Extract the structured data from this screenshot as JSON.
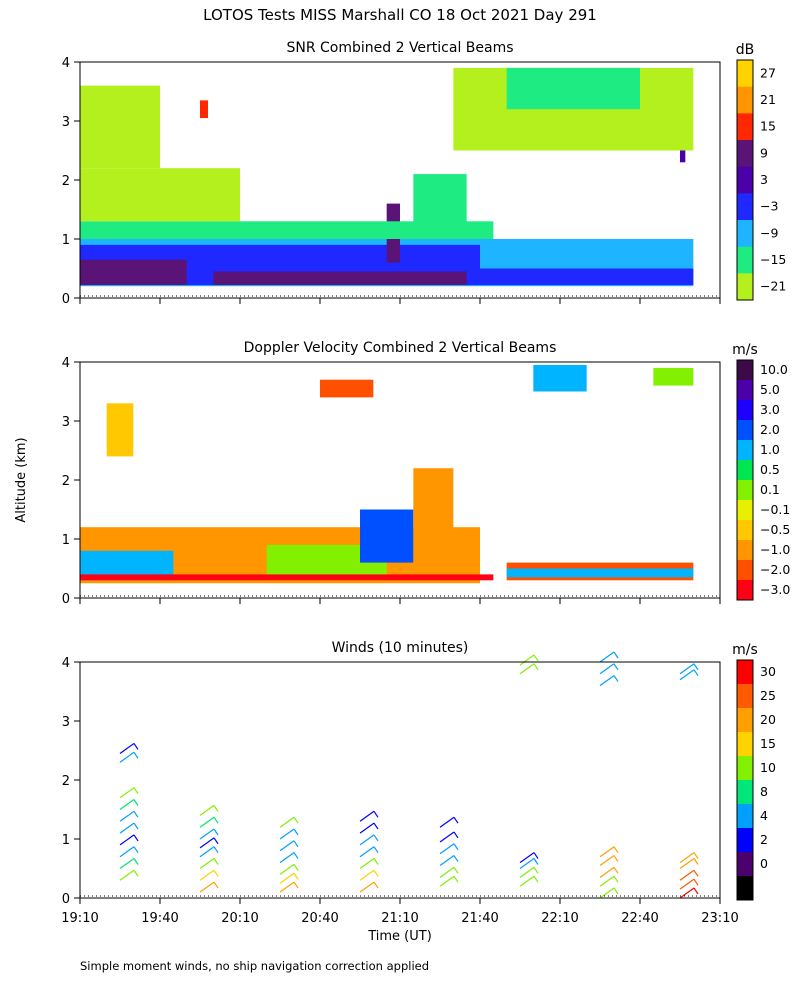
{
  "title": "LOTOS Tests MISS Marshall CO  18 Oct 2021 Day 291",
  "y_axis_label": "Altitude (km)",
  "x_axis_label": "Time (UT)",
  "x_ticks": [
    "19:10",
    "19:40",
    "20:10",
    "20:40",
    "21:10",
    "21:40",
    "22:10",
    "22:40",
    "23:10"
  ],
  "y_ticks": [
    "0",
    "1",
    "2",
    "3",
    "4"
  ],
  "footnote": "Simple moment winds, no ship navigation correction applied",
  "chart_data": [
    {
      "type": "heatmap",
      "title": "SNR Combined 2 Vertical Beams",
      "ylim": [
        0,
        4
      ],
      "xlabel": "",
      "ylabel": "Altitude (km)",
      "colorbar": {
        "unit": "dB",
        "labels": [
          "27",
          "21",
          "15",
          "9",
          "3",
          "−3",
          "−9",
          "−15",
          "−21"
        ],
        "colors": [
          "#ffd200",
          "#ff9600",
          "#ff2800",
          "#5a1478",
          "#4b00aa",
          "#1e28ff",
          "#1eb4ff",
          "#1eeb82",
          "#b4f01e"
        ]
      },
      "blocks": [
        {
          "t0": "19:10",
          "t1": "23:00",
          "h0": 0.2,
          "h1": 1.0,
          "c": 6
        },
        {
          "t0": "19:10",
          "t1": "21:40",
          "h0": 0.22,
          "h1": 0.9,
          "c": 5
        },
        {
          "t0": "19:10",
          "t1": "19:50",
          "h0": 0.22,
          "h1": 0.65,
          "c": 3
        },
        {
          "t0": "20:00",
          "t1": "21:35",
          "h0": 0.22,
          "h1": 0.45,
          "c": 3
        },
        {
          "t0": "21:05",
          "t1": "21:10",
          "h0": 0.6,
          "h1": 1.6,
          "c": 3
        },
        {
          "t0": "21:40",
          "t1": "23:00",
          "h0": 0.22,
          "h1": 0.5,
          "c": 5
        },
        {
          "t0": "19:10",
          "t1": "21:45",
          "h0": 1.0,
          "h1": 1.3,
          "c": 7
        },
        {
          "t0": "21:15",
          "t1": "21:35",
          "h0": 1.0,
          "h1": 2.1,
          "c": 7
        },
        {
          "t0": "19:10",
          "t1": "20:10",
          "h0": 1.3,
          "h1": 2.2,
          "c": 8
        },
        {
          "t0": "19:10",
          "t1": "19:40",
          "h0": 2.2,
          "h1": 3.6,
          "c": 8
        },
        {
          "t0": "21:30",
          "t1": "23:00",
          "h0": 2.5,
          "h1": 3.9,
          "c": 8
        },
        {
          "t0": "21:50",
          "t1": "22:40",
          "h0": 3.2,
          "h1": 3.9,
          "c": 7
        },
        {
          "t0": "19:55",
          "t1": "19:58",
          "h0": 3.05,
          "h1": 3.35,
          "c": 2
        },
        {
          "t0": "22:55",
          "t1": "22:57",
          "h0": 2.3,
          "h1": 2.5,
          "c": 4
        }
      ]
    },
    {
      "type": "heatmap",
      "title": "Doppler Velocity Combined 2 Vertical Beams",
      "ylim": [
        0,
        4
      ],
      "xlabel": "",
      "ylabel": "Altitude (km)",
      "colorbar": {
        "unit": "m/s",
        "labels": [
          "10.0",
          "5.0",
          "3.0",
          "2.0",
          "1.0",
          "0.5",
          "0.1",
          "−0.1",
          "−0.5",
          "−1.0",
          "−2.0",
          "−3.0"
        ],
        "colors": [
          "#3c0a46",
          "#4b00aa",
          "#1e00ff",
          "#0050ff",
          "#00b4ff",
          "#00e650",
          "#82f000",
          "#e6f000",
          "#ffc800",
          "#ff9600",
          "#ff5000",
          "#ff0014"
        ]
      },
      "blocks": [
        {
          "t0": "19:10",
          "t1": "21:40",
          "h0": 0.25,
          "h1": 1.2,
          "c": 9
        },
        {
          "t0": "19:10",
          "t1": "19:45",
          "h0": 0.3,
          "h1": 0.8,
          "c": 4
        },
        {
          "t0": "20:20",
          "t1": "21:05",
          "h0": 0.3,
          "h1": 0.9,
          "c": 6
        },
        {
          "t0": "20:55",
          "t1": "21:15",
          "h0": 0.6,
          "h1": 1.5,
          "c": 3
        },
        {
          "t0": "21:15",
          "t1": "21:30",
          "h0": 0.4,
          "h1": 2.2,
          "c": 9
        },
        {
          "t0": "19:10",
          "t1": "21:45",
          "h0": 0.3,
          "h1": 0.4,
          "c": 11
        },
        {
          "t0": "21:50",
          "t1": "23:00",
          "h0": 0.3,
          "h1": 0.6,
          "c": 10
        },
        {
          "t0": "21:50",
          "t1": "23:00",
          "h0": 0.35,
          "h1": 0.5,
          "c": 4
        },
        {
          "t0": "19:20",
          "t1": "19:30",
          "h0": 2.4,
          "h1": 3.3,
          "c": 8
        },
        {
          "t0": "20:40",
          "t1": "21:00",
          "h0": 3.4,
          "h1": 3.7,
          "c": 10
        },
        {
          "t0": "22:00",
          "t1": "22:20",
          "h0": 3.5,
          "h1": 3.95,
          "c": 4
        },
        {
          "t0": "22:45",
          "t1": "23:00",
          "h0": 3.6,
          "h1": 3.9,
          "c": 6
        }
      ]
    },
    {
      "type": "scatter",
      "title": "Winds (10 minutes)",
      "ylim": [
        0,
        4
      ],
      "xlabel": "Time (UT)",
      "ylabel": "Altitude (km)",
      "colorbar": {
        "unit": "m/s",
        "labels": [
          "30",
          "25",
          "20",
          "15",
          "10",
          "8",
          "4",
          "2",
          "0"
        ],
        "colors": [
          "#ff0000",
          "#ff5a00",
          "#ffa000",
          "#ffd200",
          "#82f000",
          "#00e678",
          "#00a0ff",
          "#0000ff",
          "#4b006e",
          "#000000"
        ]
      },
      "profiles": [
        {
          "time": "19:25",
          "points": [
            [
              0.3,
              10
            ],
            [
              0.5,
              8
            ],
            [
              0.7,
              4
            ],
            [
              0.9,
              3
            ],
            [
              1.1,
              4
            ],
            [
              1.3,
              4
            ],
            [
              1.5,
              8
            ],
            [
              1.7,
              12
            ],
            [
              2.3,
              4
            ],
            [
              2.45,
              2
            ]
          ]
        },
        {
          "time": "19:55",
          "points": [
            [
              0.1,
              22
            ],
            [
              0.3,
              18
            ],
            [
              0.5,
              12
            ],
            [
              0.7,
              4
            ],
            [
              0.85,
              3
            ],
            [
              1.0,
              4
            ],
            [
              1.2,
              8
            ],
            [
              1.4,
              12
            ]
          ]
        },
        {
          "time": "20:25",
          "points": [
            [
              0.1,
              22
            ],
            [
              0.25,
              18
            ],
            [
              0.4,
              12
            ],
            [
              0.6,
              4
            ],
            [
              0.8,
              4
            ],
            [
              1.0,
              4
            ],
            [
              1.2,
              10
            ]
          ]
        },
        {
          "time": "20:55",
          "points": [
            [
              0.1,
              22
            ],
            [
              0.3,
              18
            ],
            [
              0.5,
              10
            ],
            [
              0.7,
              4
            ],
            [
              0.9,
              4
            ],
            [
              1.1,
              3
            ],
            [
              1.3,
              3
            ]
          ]
        },
        {
          "time": "21:25",
          "points": [
            [
              0.2,
              10
            ],
            [
              0.35,
              10
            ],
            [
              0.55,
              4
            ],
            [
              0.75,
              4
            ],
            [
              0.95,
              3
            ],
            [
              1.2,
              3
            ]
          ]
        },
        {
          "time": "21:55",
          "points": [
            [
              0.2,
              10
            ],
            [
              0.35,
              10
            ],
            [
              0.5,
              4
            ],
            [
              0.6,
              3
            ],
            [
              3.8,
              12
            ],
            [
              3.95,
              10
            ]
          ]
        },
        {
          "time": "22:25",
          "points": [
            [
              0.0,
              10
            ],
            [
              0.2,
              14
            ],
            [
              0.35,
              20
            ],
            [
              0.55,
              22
            ],
            [
              0.7,
              20
            ],
            [
              3.6,
              4
            ],
            [
              3.8,
              4
            ],
            [
              4.1,
              4
            ]
          ]
        },
        {
          "time": "22:55",
          "points": [
            [
              0.0,
              30
            ],
            [
              0.15,
              28
            ],
            [
              0.3,
              28
            ],
            [
              0.5,
              20
            ],
            [
              0.6,
              22
            ],
            [
              3.7,
              4
            ],
            [
              3.8,
              4
            ]
          ]
        }
      ]
    }
  ]
}
